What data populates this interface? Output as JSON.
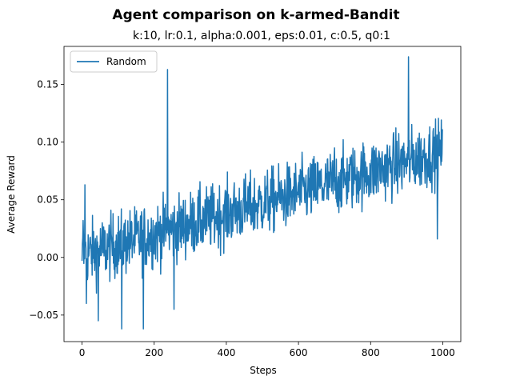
{
  "chart_data": {
    "type": "line",
    "title": "Agent comparison on k-armed-Bandit",
    "subtitle": "k:10, lr:0.1, alpha:0.001, eps:0.01, c:0.5, q0:1",
    "xlabel": "Steps",
    "ylabel": "Average Reward",
    "xlim": [
      -50,
      1050
    ],
    "ylim": [
      -0.073,
      0.183
    ],
    "xticks": [
      0,
      200,
      400,
      600,
      800,
      1000
    ],
    "xtick_labels": [
      "0",
      "200",
      "400",
      "600",
      "800",
      "1000"
    ],
    "yticks": [
      -0.05,
      0.0,
      0.05,
      0.1,
      0.15
    ],
    "ytick_labels": [
      "−0.05",
      "0.00",
      "0.05",
      "0.10",
      "0.15"
    ],
    "grid": false,
    "legend_position": "top-left",
    "series": [
      {
        "name": "Random",
        "color": "#1f77b4",
        "x_start": 0,
        "x_step": 1,
        "n_points": 1000,
        "trend_start": 0.002,
        "trend_end": 0.092,
        "noise_amplitude": 0.03,
        "points": [
          [
            0,
            -0.003
          ],
          [
            3,
            0.032
          ],
          [
            8,
            0.063
          ],
          [
            12,
            -0.04
          ],
          [
            45,
            -0.055
          ],
          [
            110,
            -0.062
          ],
          [
            170,
            -0.062
          ],
          [
            237,
            0.163
          ],
          [
            255,
            -0.045
          ],
          [
            320,
            0.02
          ],
          [
            400,
            0.055
          ],
          [
            600,
            0.065
          ],
          [
            700,
            0.095
          ],
          [
            800,
            0.08
          ],
          [
            905,
            0.174
          ],
          [
            985,
            0.016
          ],
          [
            998,
            0.09
          ]
        ]
      }
    ]
  }
}
